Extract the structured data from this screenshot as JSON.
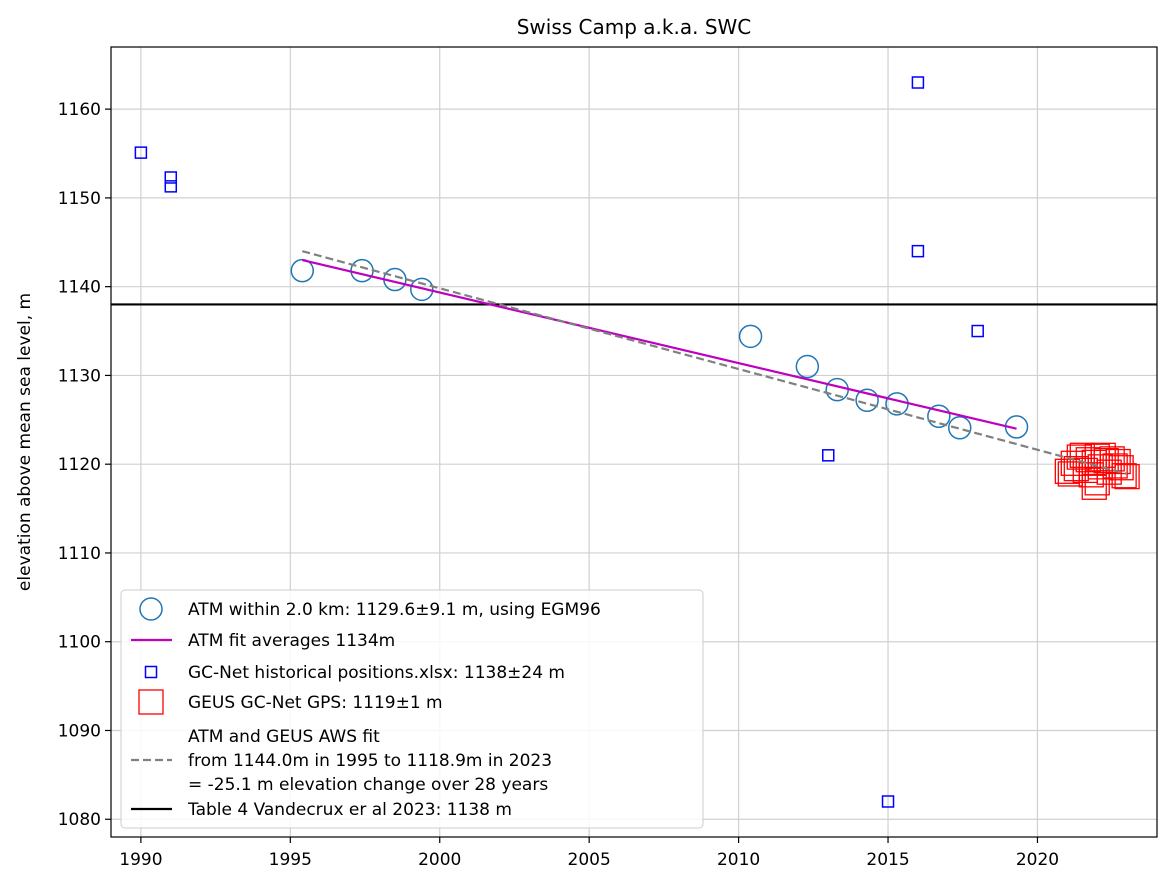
{
  "chart_data": {
    "type": "scatter",
    "title": "Swiss Camp a.k.a. SWC",
    "xlabel": "",
    "ylabel": "elevation above mean sea level, m",
    "xlim": [
      1989,
      2024
    ],
    "ylim": [
      1078,
      1167
    ],
    "xticks": [
      1990,
      1995,
      2000,
      2005,
      2010,
      2015,
      2020
    ],
    "yticks": [
      1080,
      1090,
      1100,
      1110,
      1120,
      1130,
      1140,
      1150,
      1160
    ],
    "grid": true,
    "legend_position": "lower-left",
    "colors": {
      "atm": "#1f77b4",
      "atm_fit": "#bf00bf",
      "gcnet": "#0000ff",
      "geus": "#ff0000",
      "combined_fit": "#808080",
      "table4": "#000000"
    },
    "series": [
      {
        "name": "ATM within 2.0 km: 1129.6±9.1 m, using EGM96",
        "marker": "circle",
        "x": [
          1995.4,
          1997.4,
          1998.5,
          1999.4,
          2010.4,
          2012.3,
          2013.3,
          2014.3,
          2015.3,
          2016.7,
          2017.4,
          2019.3
        ],
        "y": [
          1141.8,
          1141.8,
          1140.8,
          1139.7,
          1134.4,
          1131.0,
          1128.4,
          1127.2,
          1126.8,
          1125.4,
          1124.1,
          1124.2
        ]
      },
      {
        "name": "ATM fit averages 1134m",
        "line": "solid",
        "x": [
          1995.4,
          2019.3
        ],
        "y": [
          1143.0,
          1124.0
        ]
      },
      {
        "name": "GC-Net historical positions.xlsx: 1138±24 m",
        "marker": "square",
        "x": [
          1990.0,
          1991.0,
          1991.0,
          2013.0,
          2015.0,
          2016.0,
          2016.0,
          2018.0
        ],
        "y": [
          1155.1,
          1152.3,
          1151.3,
          1121.0,
          1082.0,
          1163.0,
          1144.0,
          1135.0
        ]
      },
      {
        "name": "GEUS GC-Net GPS: 1119±1 m",
        "marker": "square-large",
        "x": [
          2021.0,
          2021.1,
          2021.2,
          2021.3,
          2021.4,
          2021.5,
          2021.6,
          2021.7,
          2021.8,
          2021.9,
          2022.0,
          2022.1,
          2022.2,
          2022.3,
          2022.4,
          2022.5,
          2022.6,
          2022.7,
          2022.8,
          2022.9,
          2023.0,
          2021.9,
          2022.0
        ],
        "y": [
          1119.2,
          1118.9,
          1120.1,
          1119.5,
          1120.8,
          1121.0,
          1119.3,
          1120.5,
          1118.8,
          1120.2,
          1120.9,
          1119.7,
          1121.0,
          1120.4,
          1119.1,
          1120.6,
          1119.8,
          1120.3,
          1119.6,
          1118.7,
          1118.6,
          1117.4,
          1117.9
        ]
      },
      {
        "name": "ATM and GEUS AWS fit\nfrom 1144.0m in 1995 to 1118.9m in 2023\n= -25.1 m elevation change over 28 years",
        "line": "dashed",
        "x": [
          1995.4,
          2023.0
        ],
        "y": [
          1144.0,
          1118.9
        ]
      },
      {
        "name": "Table 4 Vandecrux er al 2023: 1138 m",
        "line": "horizontal",
        "y": [
          1138
        ]
      }
    ],
    "legend": [
      {
        "label": "ATM within 2.0 km: 1129.6±9.1 m, using EGM96",
        "symbol": "circle"
      },
      {
        "label": "ATM fit averages 1134m",
        "symbol": "line-magenta"
      },
      {
        "label": "GC-Net historical positions.xlsx: 1138±24 m",
        "symbol": "square-blue"
      },
      {
        "label": "GEUS GC-Net GPS: 1119±1 m",
        "symbol": "square-red"
      },
      {
        "lines": [
          "ATM and GEUS AWS fit",
          "from 1144.0m in 1995 to 1118.9m in 2023",
          "= -25.1 m elevation change over 28 years"
        ],
        "symbol": "line-dashed"
      },
      {
        "label": "Table 4 Vandecrux er al 2023: 1138 m",
        "symbol": "line-black"
      }
    ]
  }
}
